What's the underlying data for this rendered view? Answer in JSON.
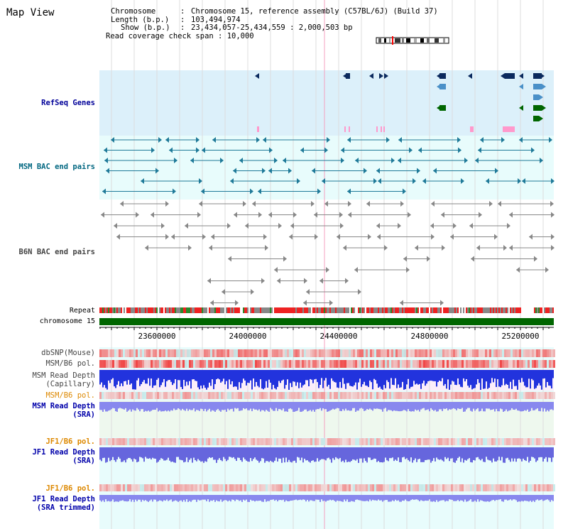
{
  "title": "Map View",
  "header": {
    "chromosome_key": "Chromosome",
    "chromosome_value": "Chromosome 15, reference assembly (C57BL/6J) (Build 37)",
    "length_key": "Length (b.p.)",
    "length_value": "103,494,974",
    "show_key": "Show (b.p.)",
    "show_value": "23,434,057-25,434,559 : 2,000,503 bp",
    "coverage_key": "Read coverage check span",
    "coverage_value": "10,000"
  },
  "tracks": {
    "refseq": "RefSeq Genes",
    "msm_bac": "MSM BAC end pairs",
    "b6n_bac": "B6N BAC end pairs",
    "repeat": "Repeat",
    "chromosome": "chromosome 15",
    "dbsnp": "dbSNP(Mouse)",
    "msm_b6_pol_1": "MSM/B6 pol.",
    "msm_read_depth_cap_1": "MSM Read Depth",
    "msm_read_depth_cap_2": "(Capillary)",
    "msm_b6_pol_2": "MSM/B6 pol.",
    "msm_read_depth_sra_1": "MSM Read Depth",
    "msm_read_depth_sra_2": "(SRA)",
    "jf1_b6_pol_1": "JF1/B6 pol.",
    "jf1_read_depth_sra_1": "JF1 Read Depth",
    "jf1_read_depth_sra_2": "(SRA)",
    "jf1_b6_pol_2": "JF1/B6 pol.",
    "jf1_read_depth_trim_1": "JF1 Read Depth",
    "jf1_read_depth_trim_2": "(SRA trimmed)"
  },
  "axis_ticks": [
    "23600000",
    "24000000",
    "24400000",
    "24800000",
    "25200000"
  ],
  "colors": {
    "refseq_label": "#000099",
    "msm_bac_label": "#006680",
    "gene_navy": "#0b2a5e",
    "gene_blue": "#4a90c8",
    "gene_green": "#006600",
    "gene_pink": "#ff99cc",
    "bac_teal": "#1f7a99",
    "bac_gray": "#888888",
    "repeat_red": "#ee2222",
    "chromosome_green": "#006600",
    "pol_red": "#ee3333",
    "depth_blue": "#2233dd",
    "jf1_label": "#dd8800",
    "depth_label": "#0000aa"
  }
}
